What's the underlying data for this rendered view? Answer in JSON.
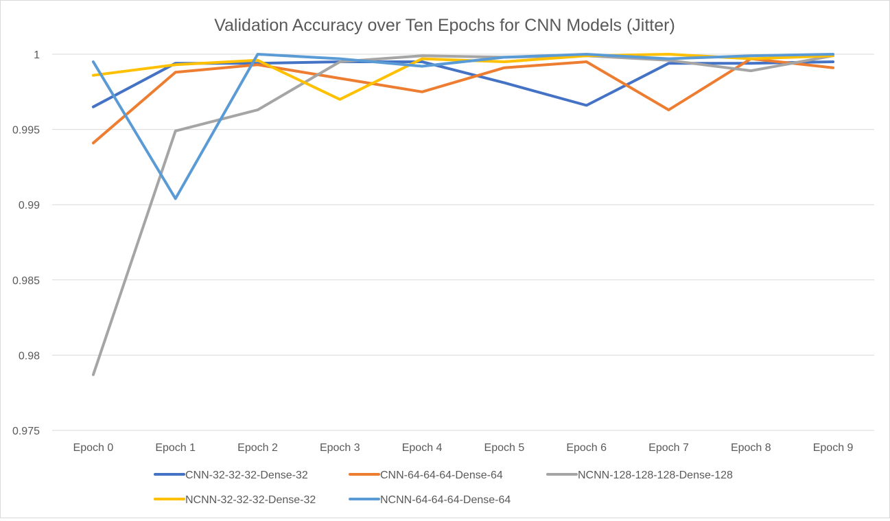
{
  "chart_data": {
    "type": "line",
    "title": "Validation Accuracy over Ten Epochs for CNN Models (Jitter)",
    "xlabel": "",
    "ylabel": "",
    "categories": [
      "Epoch 0",
      "Epoch 1",
      "Epoch 2",
      "Epoch 3",
      "Epoch 4",
      "Epoch 5",
      "Epoch 6",
      "Epoch 7",
      "Epoch 8",
      "Epoch 9"
    ],
    "ylim": [
      0.975,
      1.0
    ],
    "yticks": [
      0.975,
      0.98,
      0.985,
      0.99,
      0.995,
      1
    ],
    "ytick_labels": [
      "0.975",
      "0.98",
      "0.985",
      "0.99",
      "0.995",
      "1"
    ],
    "grid": true,
    "legend_position": "bottom",
    "series": [
      {
        "name": "CNN-32-32-32-Dense-32",
        "color": "#4472C4",
        "values": [
          0.9965,
          0.9994,
          0.9994,
          0.9995,
          0.9995,
          0.9981,
          0.9966,
          0.9994,
          0.9994,
          0.9995
        ]
      },
      {
        "name": "CNN-64-64-64-Dense-64",
        "color": "#ED7D31",
        "values": [
          0.9941,
          0.9988,
          0.9993,
          0.9984,
          0.9975,
          0.9991,
          0.9995,
          0.9963,
          0.9997,
          0.9991
        ]
      },
      {
        "name": "NCNN-128-128-128-Dense-128",
        "color": "#A5A5A5",
        "values": [
          0.9787,
          0.9949,
          0.9963,
          0.9995,
          0.9999,
          0.9998,
          0.9999,
          0.9996,
          0.9989,
          0.9999
        ]
      },
      {
        "name": "NCNN-32-32-32-Dense-32",
        "color": "#FFC000",
        "values": [
          0.9986,
          0.9993,
          0.9996,
          0.997,
          0.9997,
          0.9995,
          0.9999,
          1.0,
          0.9997,
          0.9999
        ]
      },
      {
        "name": "NCNN-64-64-64-Dense-64",
        "color": "#5B9BD5",
        "values": [
          0.9995,
          0.9904,
          1.0,
          0.9997,
          0.9992,
          0.9998,
          1.0,
          0.9997,
          0.9999,
          1.0
        ]
      }
    ]
  }
}
